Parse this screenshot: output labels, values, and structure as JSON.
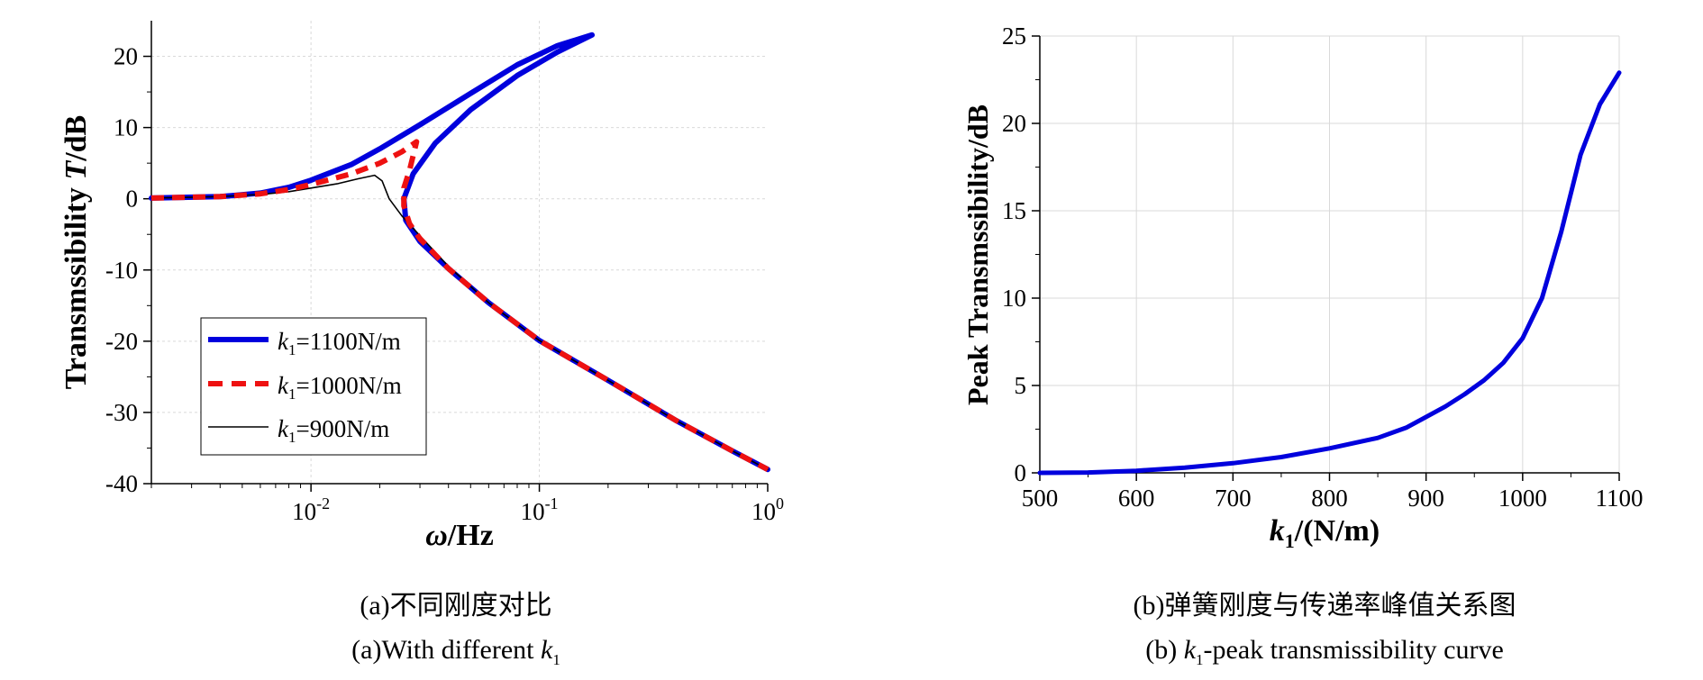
{
  "colors": {
    "blue": "#0000dd",
    "red": "#ee1111",
    "black": "#000000",
    "grid": "#d9d9d9"
  },
  "captions": {
    "a_cn": "(a)不同刚度对比",
    "a_en_prefix": "(a)With different ",
    "b_cn": "(b)弹簧刚度与传递率峰值关系图",
    "b_en_prefix": "(b) ",
    "b_en_suffix": "-peak transmissibility curve",
    "k": "k",
    "sub1": "1"
  },
  "chart_data": [
    {
      "type": "line",
      "x_scale": "log",
      "xlim": [
        0.002,
        1
      ],
      "ylim": [
        -40,
        25
      ],
      "x_ticks": [
        {
          "label_base": "10",
          "label_exp": "-2"
        },
        {
          "label_base": "10",
          "label_exp": "-1"
        },
        {
          "label_base": "10",
          "label_exp": "0"
        }
      ],
      "y_ticks": [
        "20",
        "10",
        "0",
        "-10",
        "-20",
        "-30",
        "-40"
      ],
      "xlabel_sym": "ω",
      "xlabel_unit": "/Hz",
      "ylabel_text": "Transmssibility ",
      "ylabel_sym": "T",
      "ylabel_unit": "/dB",
      "grid": true,
      "legend_position": "bottom-left",
      "series": [
        {
          "name_k": "k",
          "name_sub": "1",
          "name_rest": "=1100N/m",
          "color": "#0000dd",
          "style": "solid-thick",
          "points": [
            [
              0.002,
              0.1
            ],
            [
              0.004,
              0.3
            ],
            [
              0.006,
              0.8
            ],
            [
              0.008,
              1.6
            ],
            [
              0.01,
              2.6
            ],
            [
              0.015,
              4.8
            ],
            [
              0.02,
              7.0
            ],
            [
              0.03,
              10.4
            ],
            [
              0.05,
              14.8
            ],
            [
              0.08,
              18.8
            ],
            [
              0.12,
              21.5
            ],
            [
              0.17,
              23.0
            ],
            [
              0.12,
              20.6
            ],
            [
              0.08,
              17.3
            ],
            [
              0.05,
              12.5
            ],
            [
              0.035,
              7.8
            ],
            [
              0.028,
              3.5
            ],
            [
              0.0255,
              0.0
            ],
            [
              0.026,
              -3.0
            ],
            [
              0.03,
              -6.0
            ],
            [
              0.04,
              -9.8
            ],
            [
              0.06,
              -14.6
            ],
            [
              0.1,
              -19.9
            ],
            [
              0.2,
              -25.5
            ],
            [
              0.4,
              -31.2
            ],
            [
              0.7,
              -35.4
            ],
            [
              1.0,
              -38.0
            ]
          ]
        },
        {
          "name_k": "k",
          "name_sub": "1",
          "name_rest": "=1000N/m",
          "color": "#ee1111",
          "style": "dashed-thick",
          "points": [
            [
              0.002,
              0.1
            ],
            [
              0.004,
              0.3
            ],
            [
              0.006,
              0.7
            ],
            [
              0.008,
              1.3
            ],
            [
              0.01,
              2.0
            ],
            [
              0.015,
              3.5
            ],
            [
              0.02,
              5.0
            ],
            [
              0.025,
              6.6
            ],
            [
              0.029,
              8.0
            ],
            [
              0.027,
              4.0
            ],
            [
              0.0255,
              1.5
            ],
            [
              0.0255,
              -1.0
            ],
            [
              0.027,
              -3.5
            ],
            [
              0.03,
              -5.6
            ],
            [
              0.04,
              -9.8
            ],
            [
              0.06,
              -14.6
            ],
            [
              0.1,
              -19.9
            ],
            [
              0.2,
              -25.5
            ],
            [
              0.4,
              -31.2
            ],
            [
              0.7,
              -35.4
            ],
            [
              1.0,
              -38.0
            ]
          ]
        },
        {
          "name_k": "k",
          "name_sub": "1",
          "name_rest": "=900N/m",
          "color": "#000000",
          "style": "solid-thin",
          "points": [
            [
              0.002,
              0.1
            ],
            [
              0.004,
              0.3
            ],
            [
              0.006,
              0.6
            ],
            [
              0.008,
              1.0
            ],
            [
              0.01,
              1.5
            ],
            [
              0.013,
              2.1
            ],
            [
              0.016,
              2.8
            ],
            [
              0.019,
              3.3
            ],
            [
              0.0205,
              2.5
            ],
            [
              0.022,
              0.0
            ],
            [
              0.025,
              -2.4
            ],
            [
              0.03,
              -5.2
            ],
            [
              0.04,
              -9.5
            ],
            [
              0.06,
              -14.6
            ],
            [
              0.1,
              -19.9
            ],
            [
              0.2,
              -25.5
            ],
            [
              0.4,
              -31.2
            ],
            [
              0.7,
              -35.4
            ],
            [
              1.0,
              -38.0
            ]
          ]
        }
      ]
    },
    {
      "type": "line",
      "x_scale": "linear",
      "xlim": [
        500,
        1100
      ],
      "ylim": [
        0,
        25
      ],
      "x_ticks": [
        "500",
        "600",
        "700",
        "800",
        "900",
        "1000",
        "1100"
      ],
      "y_ticks": [
        "0",
        "5",
        "10",
        "15",
        "20",
        "25"
      ],
      "xlabel_k": "k",
      "xlabel_sub": "1",
      "xlabel_rest": "/(N/m)",
      "ylabel": "Peak Transmssibility/dB",
      "grid": true,
      "series": [
        {
          "color": "#0000dd",
          "points": [
            [
              500,
              0.0
            ],
            [
              550,
              0.02
            ],
            [
              600,
              0.12
            ],
            [
              650,
              0.3
            ],
            [
              700,
              0.55
            ],
            [
              750,
              0.9
            ],
            [
              800,
              1.4
            ],
            [
              850,
              2.0
            ],
            [
              880,
              2.6
            ],
            [
              900,
              3.2
            ],
            [
              920,
              3.8
            ],
            [
              940,
              4.5
            ],
            [
              960,
              5.3
            ],
            [
              980,
              6.3
            ],
            [
              1000,
              7.7
            ],
            [
              1020,
              10.0
            ],
            [
              1040,
              13.8
            ],
            [
              1060,
              18.2
            ],
            [
              1080,
              21.1
            ],
            [
              1100,
              22.9
            ]
          ]
        }
      ]
    }
  ]
}
